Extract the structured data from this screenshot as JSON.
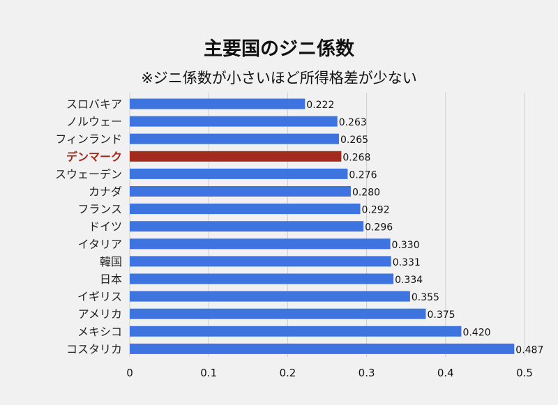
{
  "title": "主要国のジニ係数",
  "subtitle": "※ジニ係数が小さいほど所得格差が少ない",
  "colors": {
    "bar": "#3d74e0",
    "highlight": "#a32a1c",
    "grid": "#cfcfcf",
    "background": "#f1f1f1"
  },
  "chart_data": {
    "type": "bar",
    "orientation": "horizontal",
    "categories": [
      "スロバキア",
      "ノルウェー",
      "フィンランド",
      "デンマーク",
      "スウェーデン",
      "カナダ",
      "フランス",
      "ドイツ",
      "イタリア",
      "韓国",
      "日本",
      "イギリス",
      "アメリカ",
      "メキシコ",
      "コスタリカ"
    ],
    "values": [
      0.222,
      0.263,
      0.265,
      0.268,
      0.276,
      0.28,
      0.292,
      0.296,
      0.33,
      0.331,
      0.334,
      0.355,
      0.375,
      0.42,
      0.487
    ],
    "value_labels": [
      "0.222",
      "0.263",
      "0.265",
      "0.268",
      "0.276",
      "0.280",
      "0.292",
      "0.296",
      "0.330",
      "0.331",
      "0.334",
      "0.355",
      "0.375",
      "0.420",
      "0.487"
    ],
    "highlight": "デンマーク",
    "xlim": [
      0,
      0.5
    ],
    "xticks": [
      0,
      0.1,
      0.2,
      0.3,
      0.4,
      0.5
    ],
    "xtick_labels": [
      "0",
      "0.1",
      "0.2",
      "0.3",
      "0.4",
      "0.5"
    ],
    "grid": true,
    "legend": "none"
  }
}
